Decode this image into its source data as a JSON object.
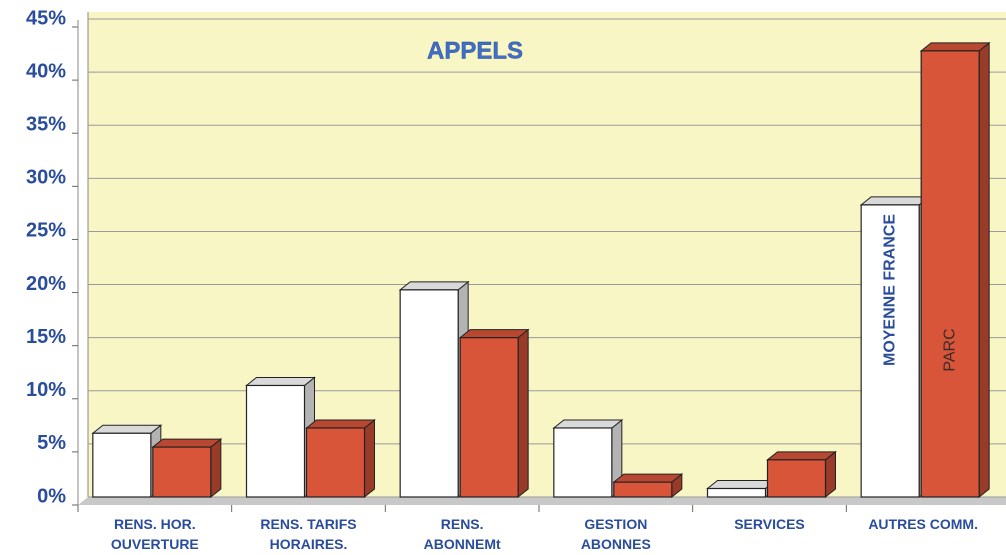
{
  "chart_data": {
    "type": "bar",
    "title": "APPELS",
    "categories": [
      "RENS. HOR. OUVERTURE",
      "RENS. TARIFS HORAIRES.",
      "RENS. ABONNEMt",
      "GESTION ABONNES",
      "SERVICES",
      "AUTRES COMM."
    ],
    "series": [
      {
        "name": "MOYENNE FRANCE",
        "color": "#ffffff",
        "values": [
          6,
          10.5,
          19.5,
          6.5,
          0.8,
          27.5
        ]
      },
      {
        "name": "PARC",
        "color": "#d9553a",
        "values": [
          4.7,
          6.5,
          15,
          1.4,
          3.5,
          42
        ]
      }
    ],
    "ylim": [
      0,
      45
    ],
    "yticks": [
      {
        "value": 0,
        "label": "0%"
      },
      {
        "value": 5,
        "label": "5%"
      },
      {
        "value": 10,
        "label": "10%"
      },
      {
        "value": 15,
        "label": "15%"
      },
      {
        "value": 20,
        "label": "20%"
      },
      {
        "value": 25,
        "label": "25%"
      },
      {
        "value": 30,
        "label": "30%"
      },
      {
        "value": 35,
        "label": "35%"
      },
      {
        "value": 40,
        "label": "40%"
      },
      {
        "value": 45,
        "label": "45%"
      }
    ],
    "grid": true
  }
}
